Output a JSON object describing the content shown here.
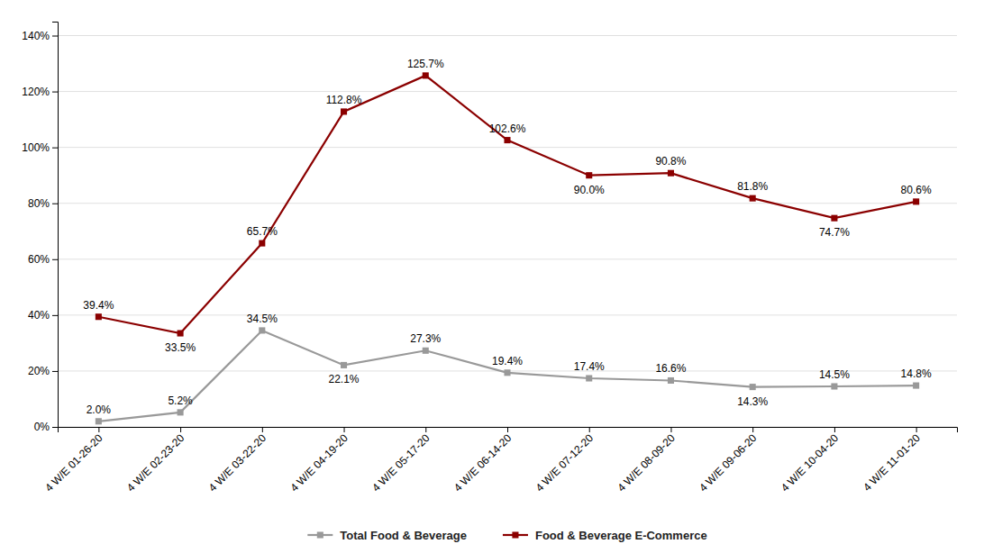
{
  "chart_data": {
    "type": "line",
    "categories": [
      "4 W/E 01-26-20",
      "4 W/E 02-23-20",
      "4 W/E 03-22-20",
      "4 W/E 04-19-20",
      "4 W/E 05-17-20",
      "4 W/E 06-14-20",
      "4 W/E 07-12-20",
      "4 W/E 08-09-20",
      "4 W/E 09-06-20",
      "4 W/E 10-04-20",
      "4 W/E 11-01-20"
    ],
    "series": [
      {
        "name": "Total Food & Beverage",
        "color": "#999999",
        "marker": "square",
        "values": [
          2.0,
          5.2,
          34.5,
          22.1,
          27.3,
          19.4,
          17.4,
          16.6,
          14.3,
          14.5,
          14.8
        ],
        "value_labels": [
          "2.0%",
          "5.2%",
          "34.5%",
          "22.1%",
          "27.3%",
          "19.4%",
          "17.4%",
          "16.6%",
          "14.3%",
          "14.5%",
          "14.8%"
        ]
      },
      {
        "name": "Food & Beverage E-Commerce",
        "color": "#8B0000",
        "marker": "square",
        "values": [
          39.4,
          33.5,
          65.7,
          112.8,
          125.7,
          102.6,
          90.0,
          90.8,
          81.8,
          74.7,
          80.6
        ],
        "value_labels": [
          "39.4%",
          "33.5%",
          "65.7%",
          "112.8%",
          "125.7%",
          "102.6%",
          "90.0%",
          "90.8%",
          "81.8%",
          "74.7%",
          "80.6%"
        ]
      }
    ],
    "ylim": [
      0,
      145
    ],
    "yticks": [
      {
        "value": 0,
        "label": "0%"
      },
      {
        "value": 20,
        "label": "20%"
      },
      {
        "value": 40,
        "label": "40%"
      },
      {
        "value": 60,
        "label": "60%"
      },
      {
        "value": 80,
        "label": "80%"
      },
      {
        "value": 100,
        "label": "100%"
      },
      {
        "value": 120,
        "label": "120%"
      },
      {
        "value": 140,
        "label": "140%"
      }
    ],
    "grid": true,
    "legend": "bottom",
    "data_labels": true
  }
}
